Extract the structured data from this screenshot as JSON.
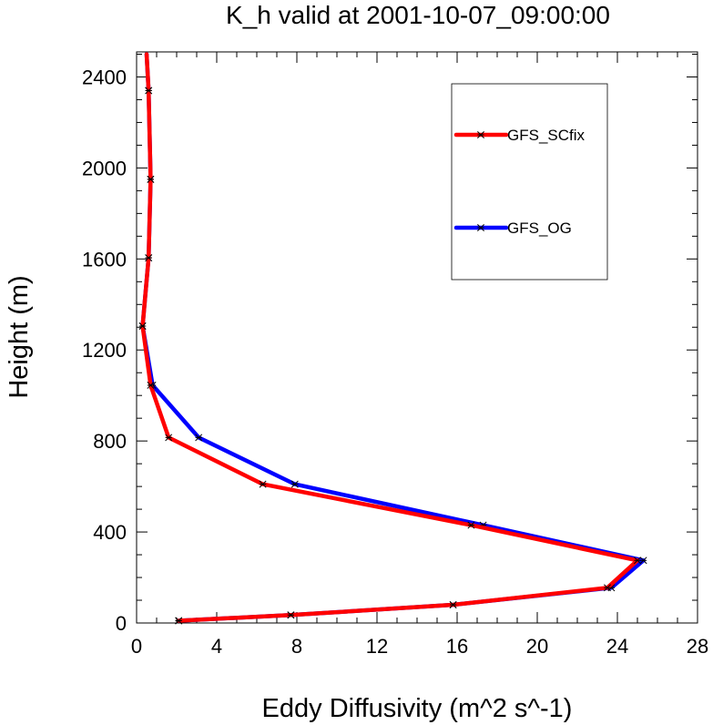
{
  "chart_data": {
    "type": "line",
    "title": "K_h valid at 2001-10-07_09:00:00",
    "xlabel": "Eddy Diffusivity (m^2 s^-1)",
    "ylabel": "Height (m)",
    "xlim": [
      0,
      28
    ],
    "ylim": [
      0,
      2510
    ],
    "xticks": [
      "0",
      "4",
      "8",
      "12",
      "16",
      "20",
      "24",
      "28"
    ],
    "yticks": [
      "0",
      "400",
      "800",
      "1200",
      "1600",
      "2000",
      "2400"
    ],
    "legend_position": "top-right",
    "series": [
      {
        "name": "GFS_SCfix",
        "color": "#ff0000",
        "x": [
          2.1,
          7.7,
          15.8,
          23.5,
          25.0,
          16.7,
          6.3,
          1.6,
          0.7,
          0.3,
          0.6,
          0.7,
          0.6,
          0.5
        ],
        "y": [
          10,
          35,
          80,
          155,
          275,
          430,
          610,
          815,
          1045,
          1305,
          1605,
          1950,
          2340,
          2500
        ]
      },
      {
        "name": "GFS_OG",
        "color": "#0000ff",
        "x": [
          2.1,
          7.7,
          15.8,
          23.7,
          25.3,
          17.3,
          7.9,
          3.1,
          0.8,
          0.3,
          0.6,
          0.7,
          0.6,
          0.5
        ],
        "y": [
          10,
          35,
          80,
          155,
          275,
          430,
          610,
          815,
          1045,
          1305,
          1605,
          1950,
          2340,
          2500
        ]
      }
    ]
  }
}
